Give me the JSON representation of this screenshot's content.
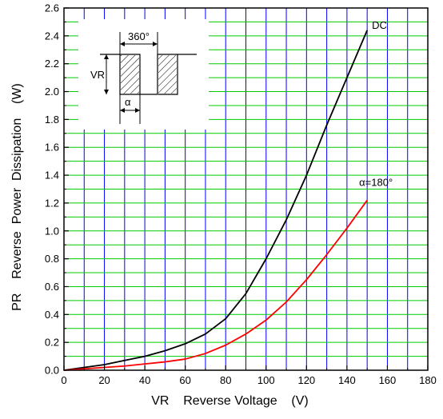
{
  "chart_data": {
    "type": "line",
    "xlabel": "VR    Reverse Voltage    (V)",
    "ylabel": "PR    Reverse  Power  Dissipation    (W)",
    "xlim": [
      0,
      180
    ],
    "ylim": [
      0,
      2.6
    ],
    "x_ticks": [
      0,
      20,
      40,
      60,
      80,
      100,
      120,
      140,
      160,
      180
    ],
    "x_tick_labels": [
      "0",
      "20",
      "40",
      "60",
      "80",
      "100",
      "120",
      "140",
      "160",
      "180"
    ],
    "y_ticks": [
      0,
      0.2,
      0.4,
      0.6,
      0.8,
      1.0,
      1.2,
      1.4,
      1.6,
      1.8,
      2.0,
      2.2,
      2.4,
      2.6
    ],
    "y_tick_labels": [
      "0.0",
      "0.2",
      "0.4",
      "0.6",
      "0.8",
      "1.0",
      "1.2",
      "1.4",
      "1.6",
      "1.8",
      "2.0",
      "2.2",
      "2.4",
      "2.6"
    ],
    "grid": true,
    "grid_colors": {
      "vertical": "#0000ff",
      "horizontal": "#00cc00"
    },
    "series": [
      {
        "name": "DC",
        "color": "#000000",
        "x": [
          0,
          10,
          20,
          30,
          40,
          50,
          60,
          70,
          80,
          90,
          100,
          110,
          120,
          130,
          140,
          150
        ],
        "y": [
          0.0,
          0.02,
          0.04,
          0.07,
          0.1,
          0.14,
          0.19,
          0.26,
          0.37,
          0.55,
          0.8,
          1.08,
          1.4,
          1.76,
          2.1,
          2.44
        ]
      },
      {
        "name": "α=180°",
        "color": "#ff0000",
        "x": [
          0,
          10,
          20,
          30,
          40,
          50,
          60,
          70,
          80,
          90,
          100,
          110,
          120,
          130,
          140,
          150
        ],
        "y": [
          0.0,
          0.01,
          0.02,
          0.03,
          0.045,
          0.06,
          0.08,
          0.12,
          0.18,
          0.26,
          0.36,
          0.49,
          0.65,
          0.83,
          1.02,
          1.22
        ]
      }
    ],
    "inset": {
      "period_label": "360°",
      "vr_label": "VR",
      "alpha_label": "α"
    }
  },
  "colors": {
    "frame": "#000000",
    "background": "#ffffff"
  }
}
